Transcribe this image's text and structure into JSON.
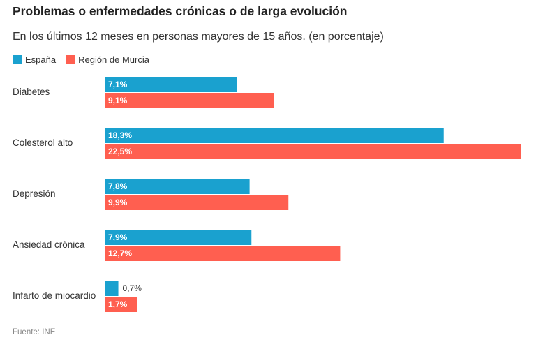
{
  "title": "Problemas o enfermedades crónicas o de larga evolución",
  "subtitle": "En los últimos 12 meses en personas mayores de 15 años. (en porcentaje)",
  "source": "Fuente: INE",
  "colors": {
    "espana": "#1aa1cf",
    "murcia": "#ff5f50"
  },
  "chart_data": {
    "type": "bar",
    "orientation": "horizontal",
    "title": "Problemas o enfermedades crónicas o de larga evolución",
    "subtitle": "En los últimos 12 meses en personas mayores de 15 años. (en porcentaje)",
    "categories": [
      "Diabetes",
      "Colesterol alto",
      "Depresión",
      "Ansiedad crónica",
      "Infarto de miocardio"
    ],
    "series": [
      {
        "name": "España",
        "values": [
          7.1,
          18.3,
          7.8,
          7.9,
          0.7
        ],
        "labels": [
          "7,1%",
          "18,3%",
          "7,8%",
          "7,9%",
          "0,7%"
        ]
      },
      {
        "name": "Región de Murcia",
        "values": [
          9.1,
          22.5,
          9.9,
          12.7,
          1.7
        ],
        "labels": [
          "9,1%",
          "22,5%",
          "9,9%",
          "12,7%",
          "1,7%"
        ]
      }
    ],
    "xlim": [
      0,
      22.5
    ],
    "legend": "top-left",
    "grid": false
  }
}
